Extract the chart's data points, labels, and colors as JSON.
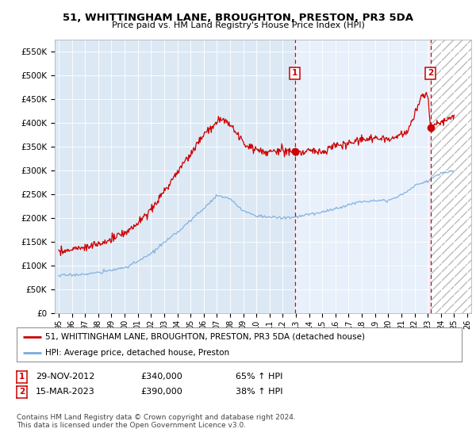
{
  "title": "51, WHITTINGHAM LANE, BROUGHTON, PRESTON, PR3 5DA",
  "subtitle": "Price paid vs. HM Land Registry's House Price Index (HPI)",
  "ylim": [
    0,
    575000
  ],
  "yticks": [
    0,
    50000,
    100000,
    150000,
    200000,
    250000,
    300000,
    350000,
    400000,
    450000,
    500000,
    550000
  ],
  "ytick_labels": [
    "£0",
    "£50K",
    "£100K",
    "£150K",
    "£200K",
    "£250K",
    "£300K",
    "£350K",
    "£400K",
    "£450K",
    "£500K",
    "£550K"
  ],
  "xlim_start": 1994.7,
  "xlim_end": 2026.3,
  "xticks": [
    1995,
    1996,
    1997,
    1998,
    1999,
    2000,
    2001,
    2002,
    2003,
    2004,
    2005,
    2006,
    2007,
    2008,
    2009,
    2010,
    2011,
    2012,
    2013,
    2014,
    2015,
    2016,
    2017,
    2018,
    2019,
    2020,
    2021,
    2022,
    2023,
    2024,
    2025,
    2026
  ],
  "hatch_start": 2023.25,
  "plot_bg_light": "#e8f0fb",
  "plot_bg_dark": "#dce9f5",
  "hatch_color": "#d4d4d4",
  "red_color": "#cc0000",
  "blue_color": "#7aaadd",
  "marker1_date": "29-NOV-2012",
  "marker1_price": 340000,
  "marker1_x": 2012.91,
  "marker2_date": "15-MAR-2023",
  "marker2_price": 390000,
  "marker2_x": 2023.21,
  "legend_line1": "51, WHITTINGHAM LANE, BROUGHTON, PRESTON, PR3 5DA (detached house)",
  "legend_line2": "HPI: Average price, detached house, Preston",
  "footer": "Contains HM Land Registry data © Crown copyright and database right 2024.\nThis data is licensed under the Open Government Licence v3.0."
}
